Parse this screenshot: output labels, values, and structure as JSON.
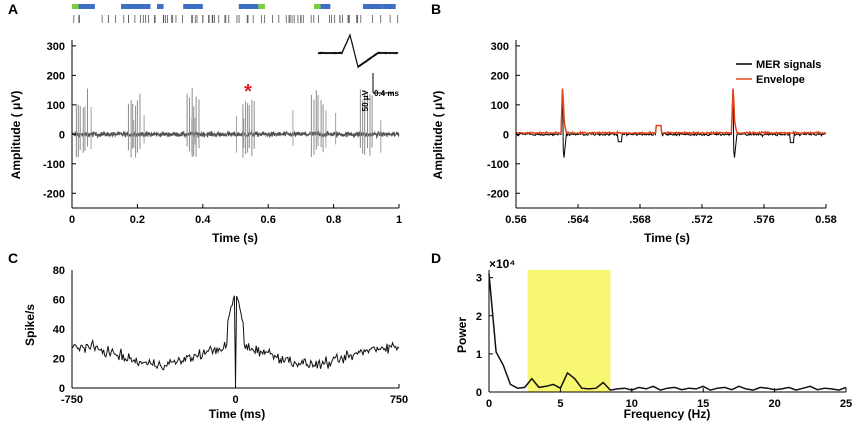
{
  "colors": {
    "axis": "#000000",
    "trace_grey": "#8c8c8c",
    "trace_dark": "#222222",
    "envelope": "#e0451b",
    "raster_blue": "#3f6fc4",
    "raster_green": "#7ccf3c",
    "highlight": "#f7f771",
    "asterisk": "#e11f1f"
  },
  "chart_data": [
    {
      "panel": "A",
      "type": "line",
      "xlabel": "Time (s)",
      "ylabel": "Amplitude ( μV)",
      "xlim": [
        0,
        1
      ],
      "ylim": [
        -250,
        320
      ],
      "xticks": [
        0,
        0.2,
        0.4,
        0.6,
        0.8,
        1
      ],
      "xtick_labels": [
        "0",
        "0.2",
        "0.4",
        "0.6",
        "0.8",
        "1"
      ],
      "yticks": [
        -200,
        -100,
        0,
        100,
        200,
        300
      ],
      "ytick_labels": [
        "-200",
        "-100",
        "0",
        "100",
        "200",
        "300"
      ],
      "annotation": "*",
      "annotation_x": 0.55,
      "burst_times": [
        0.03,
        0.19,
        0.37,
        0.54,
        0.75,
        0.9
      ],
      "raster_bars": [
        {
          "start": 0.0,
          "end": 0.02,
          "color": "green"
        },
        {
          "start": 0.02,
          "end": 0.07,
          "color": "blue"
        },
        {
          "start": 0.15,
          "end": 0.24,
          "color": "blue"
        },
        {
          "start": 0.26,
          "end": 0.28,
          "color": "blue"
        },
        {
          "start": 0.34,
          "end": 0.4,
          "color": "blue"
        },
        {
          "start": 0.51,
          "end": 0.57,
          "color": "blue"
        },
        {
          "start": 0.57,
          "end": 0.59,
          "color": "green"
        },
        {
          "start": 0.74,
          "end": 0.76,
          "color": "green"
        },
        {
          "start": 0.76,
          "end": 0.79,
          "color": "blue"
        },
        {
          "start": 0.89,
          "end": 0.95,
          "color": "blue"
        },
        {
          "start": 0.95,
          "end": 0.99,
          "color": "blue"
        }
      ],
      "inset": {
        "voltage_scale": "50 μV",
        "time_scale": "0.4 ms"
      }
    },
    {
      "panel": "B",
      "type": "line",
      "xlabel": "Time (s)",
      "ylabel": "Amplitude ( μV)",
      "xlim": [
        0.56,
        0.58
      ],
      "ylim": [
        -250,
        320
      ],
      "xticks": [
        0.56,
        0.564,
        0.568,
        0.572,
        0.576,
        0.58
      ],
      "xtick_labels": [
        "0.56",
        ".564",
        ".568",
        ".572",
        ".576",
        "0.58"
      ],
      "yticks": [
        -200,
        -100,
        0,
        100,
        200,
        300
      ],
      "ytick_labels": [
        "-200",
        "-100",
        "0",
        "100",
        "200",
        "300"
      ],
      "legend": [
        "MER signals",
        "Envelope"
      ],
      "spike_times": [
        0.563,
        0.574
      ],
      "spike_peak": 155,
      "spike_trough": -100
    },
    {
      "panel": "C",
      "type": "line",
      "xlabel": "Time (ms)",
      "ylabel": "Spike/s",
      "xlim": [
        -750,
        750
      ],
      "ylim": [
        0,
        80
      ],
      "xticks": [
        -750,
        0,
        750
      ],
      "xtick_labels": [
        "-750",
        "0",
        "750"
      ],
      "yticks": [
        0,
        20,
        40,
        60,
        80
      ],
      "ytick_labels": [
        "0",
        "20",
        "40",
        "60",
        "80"
      ],
      "peak_value": 66,
      "baseline": 22
    },
    {
      "panel": "D",
      "type": "line",
      "xlabel": "Frequency (Hz)",
      "ylabel": "Power",
      "scale_label": "×10⁴",
      "xlim": [
        0,
        25
      ],
      "ylim": [
        0,
        3.2
      ],
      "xticks": [
        0,
        5,
        10,
        15,
        20,
        25
      ],
      "xtick_labels": [
        "0",
        "5",
        "10",
        "15",
        "20",
        "25"
      ],
      "yticks": [
        0,
        1,
        2,
        3
      ],
      "ytick_labels": [
        "0",
        "1",
        "2",
        "3"
      ],
      "highlight_band": [
        2.7,
        8.5
      ],
      "x": [
        0,
        0.5,
        1,
        1.5,
        2,
        2.5,
        3,
        3.5,
        4,
        4.5,
        5,
        5.5,
        6,
        6.5,
        7,
        7.5,
        8,
        8.5,
        9,
        9.5,
        10,
        10.5,
        11,
        11.5,
        12,
        12.5,
        13,
        13.5,
        14,
        14.5,
        15,
        15.5,
        16,
        16.5,
        17,
        17.5,
        18,
        18.5,
        19,
        19.5,
        20,
        20.5,
        21,
        21.5,
        22,
        22.5,
        23,
        23.5,
        24,
        24.5,
        25
      ],
      "values": [
        3.1,
        1.05,
        0.7,
        0.2,
        0.1,
        0.12,
        0.35,
        0.12,
        0.15,
        0.2,
        0.1,
        0.5,
        0.35,
        0.1,
        0.08,
        0.1,
        0.25,
        0.05,
        0.08,
        0.1,
        0.05,
        0.12,
        0.08,
        0.15,
        0.05,
        0.1,
        0.12,
        0.06,
        0.1,
        0.08,
        0.15,
        0.05,
        0.1,
        0.12,
        0.06,
        0.15,
        0.08,
        0.05,
        0.12,
        0.1,
        0.06,
        0.08,
        0.12,
        0.05,
        0.1,
        0.15,
        0.06,
        0.1,
        0.08,
        0.05,
        0.12
      ]
    }
  ]
}
